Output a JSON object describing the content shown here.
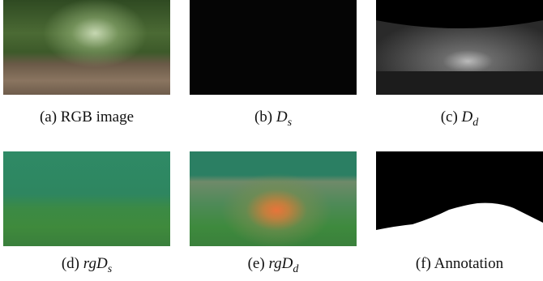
{
  "panels": [
    {
      "label": "(a)",
      "text": "RGB image"
    },
    {
      "label": "(b)",
      "symbol": "D",
      "subscript": "s"
    },
    {
      "label": "(c)",
      "symbol": "D",
      "subscript": "d"
    },
    {
      "label": "(d)",
      "symbol": "rgD",
      "subscript": "s"
    },
    {
      "label": "(e)",
      "symbol": "rgD",
      "subscript": "d"
    },
    {
      "label": "(f)",
      "text": "Annotation"
    }
  ]
}
